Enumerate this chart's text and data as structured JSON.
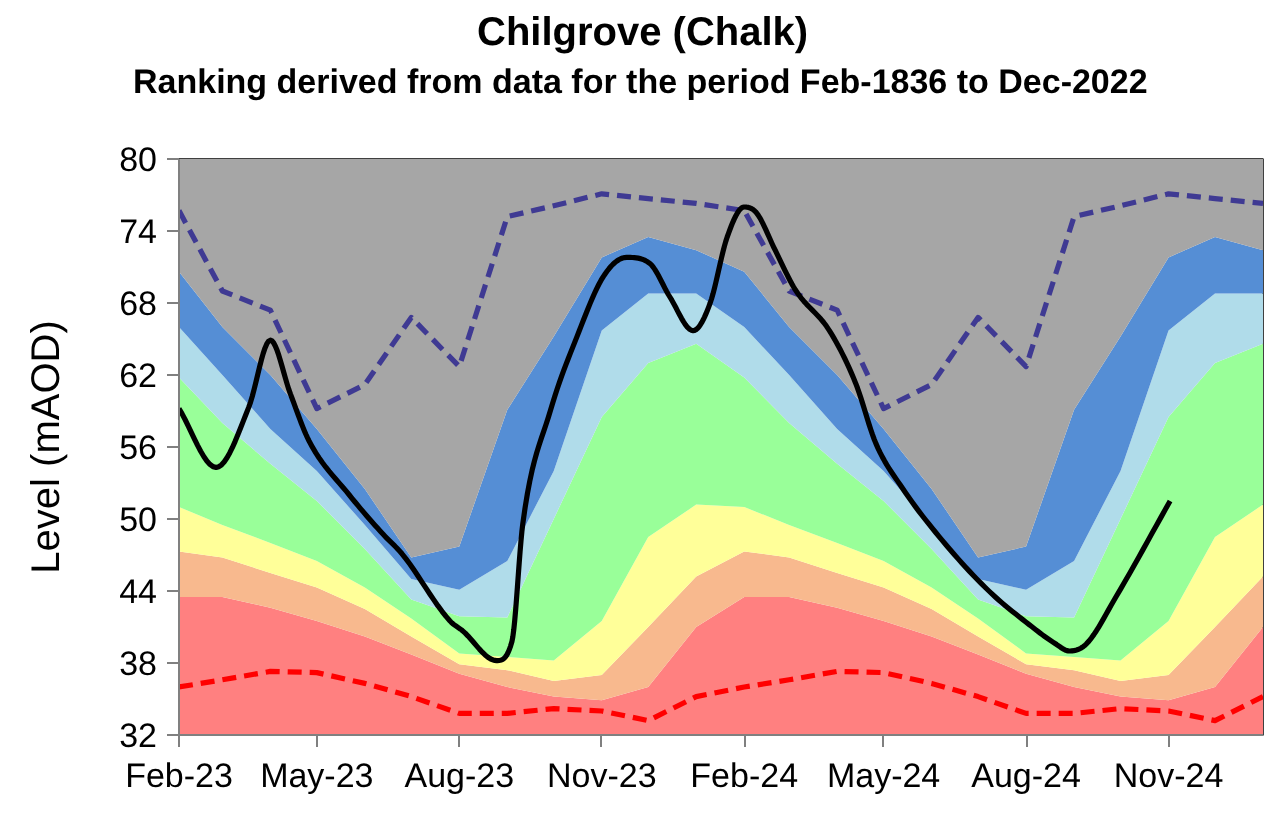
{
  "chart_data": {
    "type": "area",
    "title": "Chilgrove (Chalk)",
    "subtitle": "Ranking derived from data for the period Feb-1836 to Dec-2022",
    "ylabel": "Level (mAOD)",
    "x": [
      "2023-02-01",
      "2023-03-01",
      "2023-04-01",
      "2023-05-01",
      "2023-06-01",
      "2023-07-01",
      "2023-08-01",
      "2023-09-01",
      "2023-10-01",
      "2023-11-01",
      "2023-12-01",
      "2024-01-01",
      "2024-02-01",
      "2024-03-01",
      "2024-04-01",
      "2024-05-01",
      "2024-06-01",
      "2024-07-01",
      "2024-08-01",
      "2024-09-01",
      "2024-10-01",
      "2024-11-01",
      "2024-12-01",
      "2025-01-01"
    ],
    "series": [
      {
        "color": "#ff8080",
        "values": [
          43.5,
          43.5,
          42.6,
          41.5,
          40.2,
          38.7,
          37.1,
          36.0,
          35.2,
          34.9,
          36.0,
          41.0,
          43.5,
          43.5,
          42.6,
          41.5,
          40.2,
          38.7,
          37.1,
          36.0,
          35.2,
          34.9,
          36.0,
          41.0
        ]
      },
      {
        "color": "#f8b98e",
        "values": [
          47.3,
          46.8,
          45.5,
          44.3,
          42.5,
          40.2,
          37.9,
          37.4,
          36.5,
          37.0,
          41.0,
          45.2,
          47.3,
          46.8,
          45.5,
          44.3,
          42.5,
          40.2,
          37.9,
          37.4,
          36.5,
          37.0,
          41.0,
          45.2
        ]
      },
      {
        "color": "#ffff99",
        "values": [
          51.0,
          49.5,
          48.0,
          46.5,
          44.3,
          41.7,
          38.8,
          38.5,
          38.2,
          41.5,
          48.5,
          51.2,
          51.0,
          49.5,
          48.0,
          46.5,
          44.3,
          41.7,
          38.8,
          38.5,
          38.2,
          41.5,
          48.5,
          51.2
        ]
      },
      {
        "color": "#99ff99",
        "values": [
          61.8,
          58.0,
          54.6,
          51.5,
          47.5,
          43.3,
          41.9,
          41.8,
          50.0,
          58.5,
          63.0,
          64.6,
          61.8,
          58.0,
          54.6,
          51.5,
          47.5,
          43.3,
          41.9,
          41.8,
          50.0,
          58.5,
          63.0,
          64.6
        ]
      },
      {
        "color": "#b0dcea",
        "values": [
          66.0,
          62.0,
          57.5,
          54.0,
          49.5,
          45.0,
          44.1,
          46.5,
          54.0,
          65.7,
          68.8,
          68.8,
          66.0,
          62.0,
          57.5,
          54.0,
          49.5,
          45.0,
          44.1,
          46.5,
          54.0,
          65.7,
          68.8,
          68.8
        ]
      },
      {
        "color": "#558ed5",
        "values": [
          70.6,
          66.0,
          62.0,
          57.5,
          52.5,
          46.8,
          47.7,
          59.1,
          65.2,
          71.8,
          73.5,
          72.4,
          70.6,
          66.0,
          62.0,
          57.5,
          52.5,
          46.8,
          47.7,
          59.1,
          65.2,
          71.8,
          73.5,
          72.4
        ]
      },
      {
        "color": "#a6a6a6",
        "values": [
          80,
          80,
          80,
          80,
          80,
          80,
          80,
          80,
          80,
          80,
          80,
          80,
          80,
          80,
          80,
          80,
          80,
          80,
          80,
          80,
          80,
          80,
          80,
          80
        ]
      },
      {
        "type": "line",
        "color": "#3f3a93",
        "line_style": "dashed",
        "values": [
          75.7,
          69.0,
          67.4,
          59.2,
          61.2,
          66.8,
          62.7,
          75.2,
          76.1,
          77.1,
          76.7,
          76.3,
          75.7,
          69.0,
          67.4,
          59.2,
          61.2,
          66.8,
          62.7,
          75.2,
          76.1,
          77.1,
          76.7,
          76.3
        ]
      },
      {
        "type": "line",
        "color": "#ff0000",
        "line_style": "dashed",
        "values": [
          36.0,
          36.6,
          37.3,
          37.2,
          36.3,
          35.2,
          33.8,
          33.8,
          34.2,
          34.0,
          33.2,
          35.2,
          36.0,
          36.6,
          37.3,
          37.2,
          36.3,
          35.2,
          33.8,
          33.8,
          34.2,
          34.0,
          33.2,
          35.2
        ]
      },
      {
        "type": "line",
        "color": "#000000",
        "line_style": "solid",
        "x": [
          "2023-02-01",
          "2023-02-25",
          "2023-03-18",
          "2023-04-01",
          "2023-04-14",
          "2023-04-26",
          "2023-05-22",
          "2023-06-13",
          "2023-06-25",
          "2023-07-26",
          "2023-08-03",
          "2023-08-25",
          "2023-09-04",
          "2023-09-11",
          "2023-09-29",
          "2023-10-16",
          "2023-11-02",
          "2023-11-17",
          "2023-12-02",
          "2023-12-15",
          "2023-12-30",
          "2024-01-10",
          "2024-01-21",
          "2024-02-01",
          "2024-02-09",
          "2024-02-21",
          "2024-03-05",
          "2024-03-27",
          "2024-04-13",
          "2024-04-26",
          "2024-05-13",
          "2024-06-08",
          "2024-07-08",
          "2024-08-03",
          "2024-08-20",
          "2024-08-29",
          "2024-09-09",
          "2024-09-28",
          "2024-11-02"
        ],
        "values": [
          59.2,
          54.3,
          59.3,
          64.9,
          60.4,
          56.5,
          52.0,
          48.7,
          47.1,
          41.5,
          40.7,
          38.2,
          39.8,
          49.6,
          59.1,
          65.2,
          70.2,
          71.8,
          71.3,
          68.5,
          65.7,
          68.0,
          73.5,
          76.0,
          75.5,
          72.4,
          69.1,
          65.7,
          61.3,
          56.3,
          52.6,
          48.2,
          44.0,
          41.2,
          39.6,
          39.0,
          39.6,
          43.5,
          51.5
        ]
      }
    ],
    "xlim": [
      "2023-02-01",
      "2025-01-01"
    ],
    "xticks": [
      {
        "value": "2023-02-01",
        "label": "Feb-23"
      },
      {
        "value": "2023-05-01",
        "label": "May-23"
      },
      {
        "value": "2023-08-01",
        "label": "Aug-23"
      },
      {
        "value": "2023-11-01",
        "label": "Nov-23"
      },
      {
        "value": "2024-02-01",
        "label": "Feb-24"
      },
      {
        "value": "2024-05-01",
        "label": "May-24"
      },
      {
        "value": "2024-08-01",
        "label": "Aug-24"
      },
      {
        "value": "2024-11-01",
        "label": "Nov-24"
      }
    ],
    "ylim": [
      32,
      80
    ],
    "yticks": [
      32,
      38,
      44,
      50,
      56,
      62,
      68,
      74,
      80
    ],
    "grid": false
  }
}
